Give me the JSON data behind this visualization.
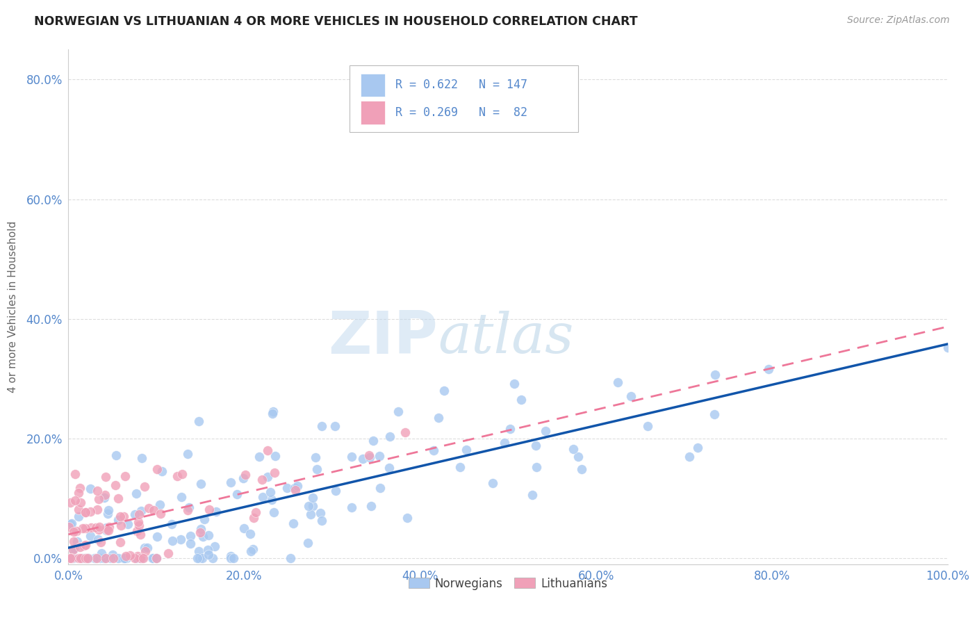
{
  "title": "NORWEGIAN VS LITHUANIAN 4 OR MORE VEHICLES IN HOUSEHOLD CORRELATION CHART",
  "source": "Source: ZipAtlas.com",
  "ylabel": "4 or more Vehicles in Household",
  "legend_norwegian": "Norwegians",
  "legend_lithuanian": "Lithuanians",
  "r_norwegian": 0.622,
  "n_norwegian": 147,
  "r_lithuanian": 0.269,
  "n_lithuanian": 82,
  "color_norwegian": "#A8C8F0",
  "color_lithuanian": "#F0A0B8",
  "line_norwegian": "#1155AA",
  "line_lithuanian": "#EE7799",
  "axis_color": "#5588CC",
  "watermark_color": "#C8DCF0",
  "background_color": "#FFFFFF",
  "grid_color": "#DDDDDD",
  "xlim": [
    0,
    1.0
  ],
  "ylim": [
    -0.01,
    0.85
  ],
  "x_ticks": [
    0.0,
    0.2,
    0.4,
    0.6,
    0.8,
    1.0
  ],
  "y_ticks": [
    0.0,
    0.2,
    0.4,
    0.6,
    0.8
  ]
}
